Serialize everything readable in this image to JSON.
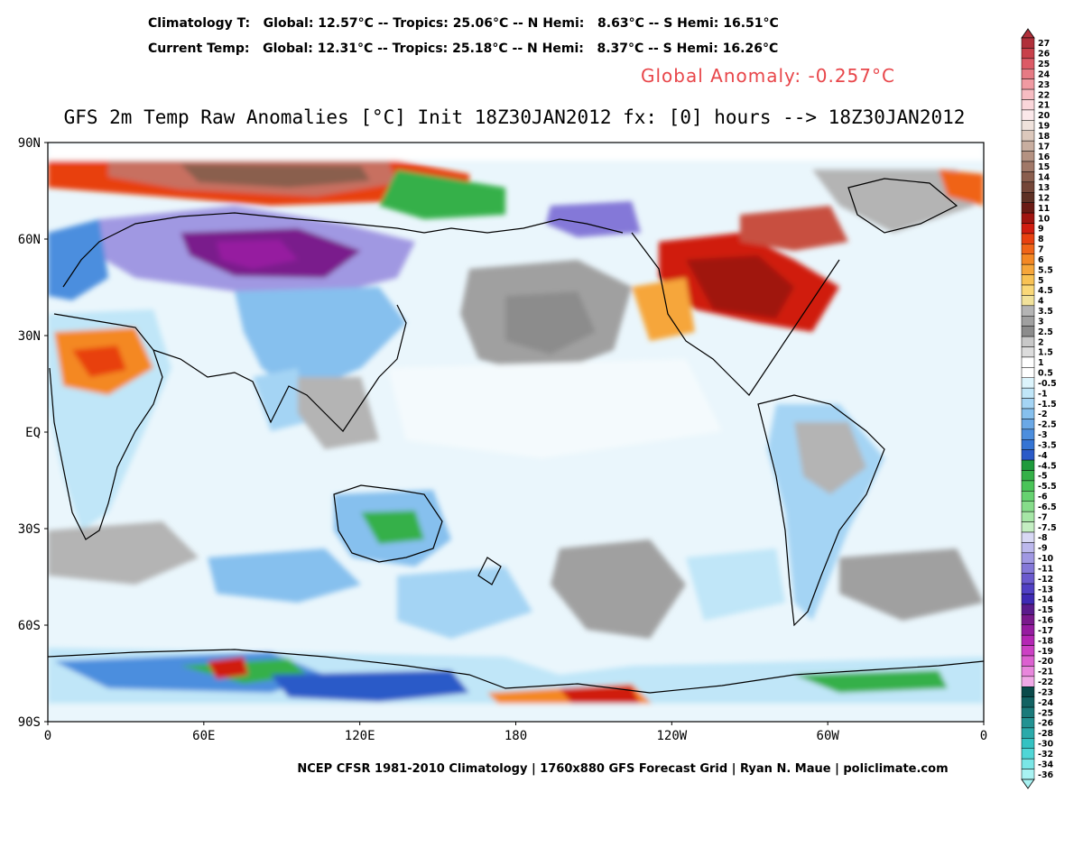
{
  "header": {
    "climatology_line": "Climatology T:   Global: 12.57°C -- Tropics: 25.06°C -- N Hemi:   8.63°C -- S Hemi: 16.51°C",
    "current_line": "Current Temp:   Global: 12.31°C -- Tropics: 25.18°C -- N Hemi:   8.37°C -- S Hemi: 16.26°C",
    "anomaly": "Global Anomaly: -0.257°C"
  },
  "title": "GFS 2m Temp Raw Anomalies [°C] Init 18Z30JAN2012 fx: [0] hours --> 18Z30JAN2012",
  "footer": "NCEP CFSR 1981-2010 Climatology | 1760x880 GFS Forecast Grid | Ryan N. Maue | policlimate.com",
  "map": {
    "lat_labels": [
      "90N",
      "60N",
      "30N",
      "EQ",
      "30S",
      "60S",
      "90S"
    ],
    "lon_labels": [
      "0",
      "60E",
      "120E",
      "180",
      "120W",
      "60W",
      "0"
    ]
  },
  "colorbar": {
    "labels": [
      "27",
      "26",
      "25",
      "24",
      "23",
      "22",
      "21",
      "20",
      "19",
      "18",
      "17",
      "16",
      "15",
      "14",
      "13",
      "12",
      "11",
      "10",
      "9",
      "8",
      "7",
      "6",
      "5.5",
      "5",
      "4.5",
      "4",
      "3.5",
      "3",
      "2.5",
      "2",
      "1.5",
      "1",
      "0.5",
      "-0.5",
      "-1",
      "-1.5",
      "-2",
      "-2.5",
      "-3",
      "-3.5",
      "-4",
      "-4.5",
      "-5",
      "-5.5",
      "-6",
      "-6.5",
      "-7",
      "-7.5",
      "-8",
      "-9",
      "-10",
      "-11",
      "-12",
      "-13",
      "-14",
      "-15",
      "-16",
      "-17",
      "-18",
      "-19",
      "-20",
      "-21",
      "-22",
      "-23",
      "-24",
      "-25",
      "-26",
      "-28",
      "-30",
      "-32",
      "-34",
      "-36"
    ],
    "colors": [
      "#b0303a",
      "#c8404a",
      "#dc5a66",
      "#e67a84",
      "#f09aa2",
      "#f6bcc2",
      "#fad6da",
      "#fbe8ea",
      "#efe2dc",
      "#dcc8bc",
      "#c8aea0",
      "#b49282",
      "#a07868",
      "#8a5e4e",
      "#744638",
      "#5e3024",
      "#6a1a14",
      "#a01410",
      "#d01c10",
      "#e84010",
      "#f06418",
      "#f48824",
      "#f6a63a",
      "#f8c254",
      "#fad878",
      "#f2e29a",
      "#b4b4b4",
      "#a0a0a0",
      "#8c8c8c",
      "#c8c8c8",
      "#dcdcdc",
      "#ffffff",
      "#ffffff",
      "#dcf4fc",
      "#c0e6f8",
      "#a4d4f4",
      "#86c0ee",
      "#6aa8e6",
      "#4c8ede",
      "#3474d4",
      "#2a5ac8",
      "#1e9a3c",
      "#34b048",
      "#4ac458",
      "#66d270",
      "#86dc8a",
      "#a6e6a6",
      "#c4eec2",
      "#d8d8f4",
      "#bcb8ec",
      "#a098e2",
      "#8478d8",
      "#6a5ace",
      "#5040c4",
      "#3e2ab4",
      "#5a1c8c",
      "#7a1a8c",
      "#961ca0",
      "#b426b4",
      "#cc40c4",
      "#dc60d0",
      "#e886dc",
      "#f0a8e6",
      "#0a4a4a",
      "#126262",
      "#1a7a7a",
      "#229292",
      "#2aaaaa",
      "#34c2c2",
      "#50d6d6",
      "#7ae6e6",
      "#a8f2f2"
    ]
  }
}
